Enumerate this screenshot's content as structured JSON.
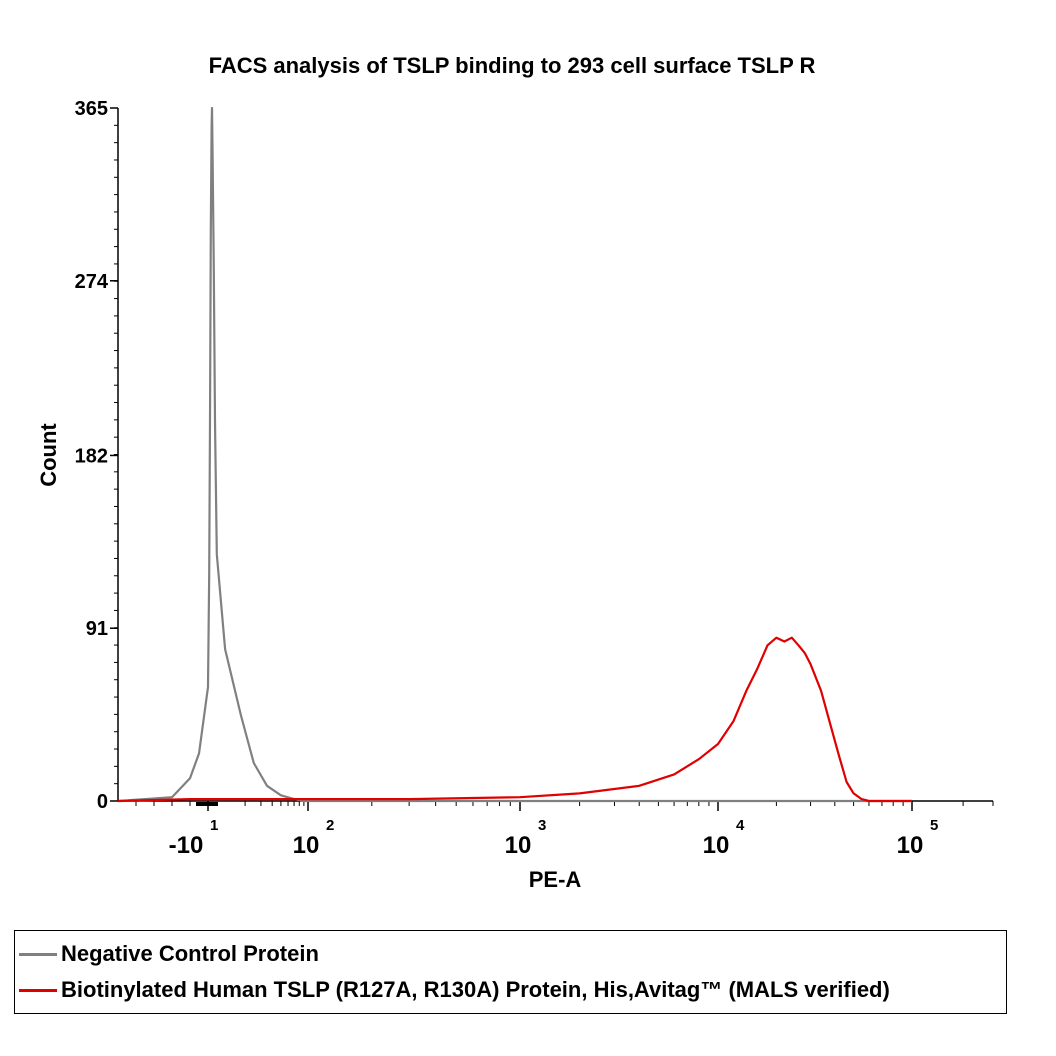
{
  "chart_data": {
    "type": "line",
    "title": "FACS analysis of  TSLP binding to 293 cell surface TSLP R",
    "xlabel": "PE-A",
    "ylabel": "Count",
    "ylim": [
      0,
      365
    ],
    "yticks": [
      "0",
      "91",
      "182",
      "274",
      "365"
    ],
    "xscale": "biexponential",
    "xticks": [
      {
        "base": "-10",
        "exp": "1"
      },
      {
        "base": "10",
        "exp": "2"
      },
      {
        "base": "10",
        "exp": "3"
      },
      {
        "base": "10",
        "exp": "4"
      },
      {
        "base": "10",
        "exp": "5"
      }
    ],
    "series": [
      {
        "name": "Negative Control Protein",
        "color": "#808080",
        "x": [
          -60,
          -30,
          -20,
          -15,
          -10,
          -7,
          -5,
          -3,
          -1,
          0,
          1,
          3,
          5,
          8,
          12,
          18,
          25,
          35,
          50,
          70,
          90,
          100,
          150,
          300,
          1000,
          10000,
          100000
        ],
        "y": [
          0,
          2,
          12,
          25,
          60,
          120,
          200,
          300,
          355,
          365,
          340,
          280,
          200,
          130,
          80,
          45,
          20,
          8,
          3,
          1,
          0,
          0,
          0,
          0,
          0,
          0,
          0
        ]
      },
      {
        "name": "Biotinylated Human TSLP (R127A, R130A) Protein, His,Avitag™ (MALS verified)",
        "color": "#e00000",
        "x": [
          -60,
          -20,
          0,
          20,
          100,
          300,
          1000,
          2000,
          4000,
          6000,
          8000,
          10000,
          12000,
          14000,
          16000,
          18000,
          20000,
          22000,
          24000,
          26000,
          28000,
          30000,
          34000,
          38000,
          42000,
          46000,
          50000,
          55000,
          60000,
          70000,
          80000,
          100000
        ],
        "y": [
          0,
          1,
          1,
          1,
          1,
          1,
          2,
          4,
          8,
          14,
          22,
          30,
          42,
          58,
          70,
          82,
          86,
          84,
          86,
          82,
          78,
          72,
          58,
          40,
          24,
          10,
          4,
          1,
          0,
          0,
          0,
          0
        ]
      }
    ]
  }
}
